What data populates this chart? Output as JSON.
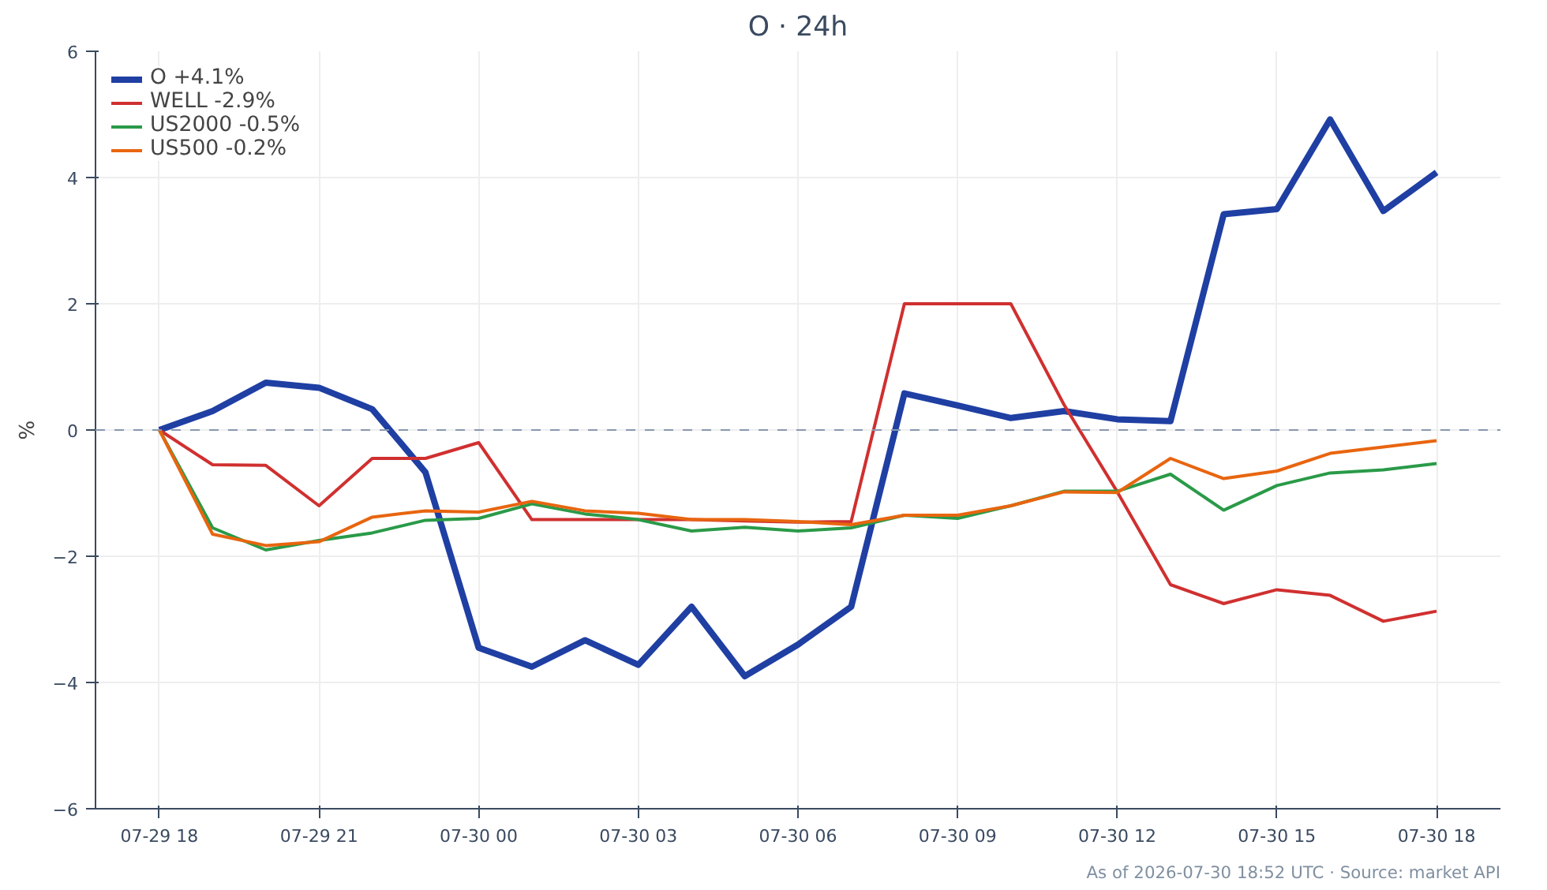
{
  "chart_data": {
    "type": "line",
    "title": "O · 24h",
    "ylabel": "%",
    "x": [
      "2026-07-29T18:00",
      "2026-07-29T19:00",
      "2026-07-29T20:00",
      "2026-07-29T21:00",
      "2026-07-29T22:00",
      "2026-07-29T23:00",
      "2026-07-30T00:00",
      "2026-07-30T01:00",
      "2026-07-30T02:00",
      "2026-07-30T03:00",
      "2026-07-30T04:00",
      "2026-07-30T05:00",
      "2026-07-30T06:00",
      "2026-07-30T07:00",
      "2026-07-30T08:00",
      "2026-07-30T09:00",
      "2026-07-30T10:00",
      "2026-07-30T11:00",
      "2026-07-30T12:00",
      "2026-07-30T13:00",
      "2026-07-30T14:00",
      "2026-07-30T15:00",
      "2026-07-30T16:00",
      "2026-07-30T17:00",
      "2026-07-30T18:00"
    ],
    "series": [
      {
        "name": "O +4.1%",
        "color": "#1f3fa3",
        "values": [
          0,
          0.3,
          0.75,
          0.67,
          0.33,
          -0.67,
          -3.45,
          -3.75,
          -3.33,
          -3.72,
          -2.8,
          -3.9,
          -3.4,
          -2.8,
          0.58,
          0.39,
          0.19,
          0.3,
          0.17,
          0.14,
          3.42,
          3.5,
          4.92,
          3.47,
          4.08
        ]
      },
      {
        "name": "WELL -2.9%",
        "color": "#d03030",
        "values": [
          0,
          -0.55,
          -0.56,
          -1.2,
          -0.45,
          -0.45,
          -0.2,
          -1.42,
          -1.42,
          -1.42,
          -1.42,
          -1.44,
          -1.46,
          -1.45,
          2.0,
          2.0,
          2.0,
          0.4,
          -0.98,
          -2.45,
          -2.75,
          -2.53,
          -2.62,
          -3.03,
          -2.87
        ]
      },
      {
        "name": "US2000 -0.5%",
        "color": "#2a9a48",
        "values": [
          0,
          -1.55,
          -1.9,
          -1.75,
          -1.63,
          -1.43,
          -1.4,
          -1.17,
          -1.33,
          -1.42,
          -1.6,
          -1.54,
          -1.6,
          -1.55,
          -1.35,
          -1.4,
          -1.2,
          -0.97,
          -0.97,
          -0.7,
          -1.27,
          -0.88,
          -0.68,
          -0.63,
          -0.53
        ]
      },
      {
        "name": "US500 -0.2%",
        "color": "#e8650f",
        "values": [
          0,
          -1.65,
          -1.83,
          -1.77,
          -1.38,
          -1.28,
          -1.3,
          -1.13,
          -1.28,
          -1.32,
          -1.42,
          -1.42,
          -1.45,
          -1.5,
          -1.35,
          -1.35,
          -1.2,
          -0.98,
          -0.99,
          -0.45,
          -0.77,
          -0.65,
          -0.37,
          -0.27,
          -0.17
        ]
      }
    ],
    "xlim": [
      "2026-07-29T16:48",
      "2026-07-30T19:12"
    ],
    "xticks": [
      {
        "value": "2026-07-29T18:00",
        "label": "07-29 18"
      },
      {
        "value": "2026-07-29T21:00",
        "label": "07-29 21"
      },
      {
        "value": "2026-07-30T00:00",
        "label": "07-30 00"
      },
      {
        "value": "2026-07-30T03:00",
        "label": "07-30 03"
      },
      {
        "value": "2026-07-30T06:00",
        "label": "07-30 06"
      },
      {
        "value": "2026-07-30T09:00",
        "label": "07-30 09"
      },
      {
        "value": "2026-07-30T12:00",
        "label": "07-30 12"
      },
      {
        "value": "2026-07-30T15:00",
        "label": "07-30 15"
      },
      {
        "value": "2026-07-30T18:00",
        "label": "07-30 18"
      }
    ],
    "ylim": [
      -6,
      6
    ],
    "yticks": [
      {
        "value": -6,
        "label": "−6"
      },
      {
        "value": -4,
        "label": "−4"
      },
      {
        "value": -2,
        "label": "−2"
      },
      0,
      2,
      4,
      6
    ],
    "ref_lines": [
      {
        "axis": "y",
        "value": 0,
        "color": "#8898b0",
        "line_style": "dashed"
      }
    ],
    "annotations": [
      "As of 2026-07-30 18:52 UTC · Source: market API"
    ],
    "grid": true,
    "legend": "top left",
    "marker": "none",
    "line_style": "solid"
  }
}
